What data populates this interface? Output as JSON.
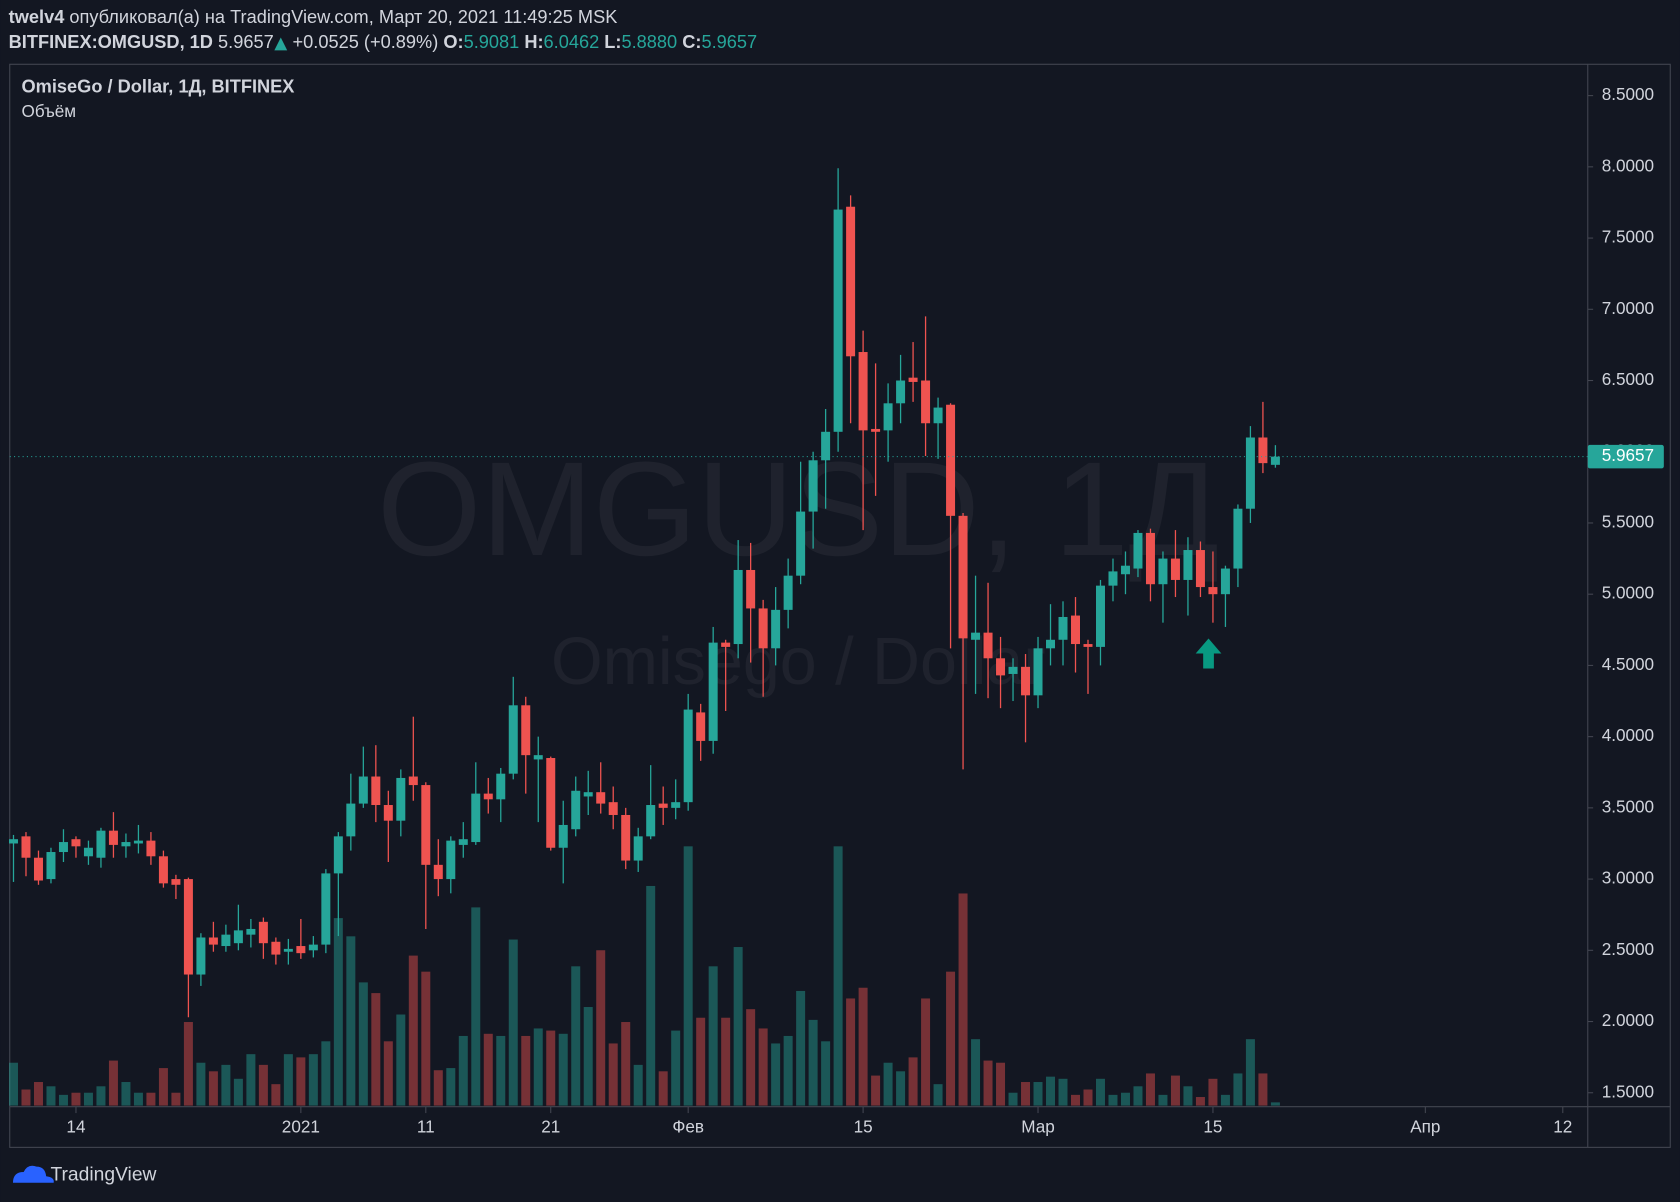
{
  "header": {
    "author": "twelv4",
    "published": "опубликовал(а) на TradingView.com, Март 20, 2021 11:49:25 MSK",
    "symbol": "BITFINEX:OMGUSD, 1D",
    "price": "5.9657",
    "change": "+0.0525 (+0.89%)",
    "open_label": "O:",
    "open": "5.9081",
    "high_label": "H:",
    "high": "6.0462",
    "low_label": "L:",
    "low": "5.8880",
    "close_label": "C:",
    "close": "5.9657"
  },
  "footer": {
    "brand": "TradingView"
  },
  "chart_data": {
    "type": "candlestick",
    "title": "OmiseGo / Dollar, 1Д, BITFINEX",
    "volume_label": "Объём",
    "watermark": "OMGUSD, 1Д",
    "watermark_subtitle": "Omisego / Dollar",
    "up_color": "#26a69a",
    "down_color": "#ef5350",
    "open": [
      3.25,
      3.3,
      3.15,
      3.0,
      3.19,
      3.28,
      3.16,
      3.15,
      3.34,
      3.23,
      3.25,
      3.27,
      3.16,
      3.0,
      3.0,
      2.33,
      2.59,
      2.53,
      2.55,
      2.61,
      2.7,
      2.56,
      2.49,
      2.53,
      2.5,
      2.54,
      3.04,
      3.3,
      3.53,
      3.72,
      3.52,
      3.41,
      3.72,
      3.66,
      3.1,
      3.0,
      3.24,
      3.26,
      3.6,
      3.56,
      3.74,
      4.22,
      3.84,
      3.85,
      3.22,
      3.35,
      3.58,
      3.61,
      3.54,
      3.45,
      3.13,
      3.3,
      3.53,
      3.5,
      3.54,
      4.17,
      3.97,
      4.66,
      4.65,
      5.17,
      4.9,
      4.62,
      4.89,
      5.13,
      5.58,
      5.94,
      6.14,
      7.72,
      6.7,
      6.16,
      6.15,
      6.34,
      6.52,
      6.5,
      6.2,
      6.33,
      5.55,
      4.68,
      4.73,
      4.55,
      4.44,
      4.49,
      4.29,
      4.62,
      4.68,
      4.85,
      4.65,
      4.63,
      5.06,
      5.14,
      5.18,
      5.43,
      5.07,
      5.25,
      5.1,
      5.31,
      5.05,
      5.0,
      5.18,
      5.6,
      6.1,
      5.9081
    ],
    "high": [
      3.31,
      3.33,
      3.2,
      3.22,
      3.35,
      3.3,
      3.27,
      3.36,
      3.47,
      3.32,
      3.38,
      3.33,
      3.2,
      3.03,
      3.01,
      2.62,
      2.7,
      2.68,
      2.82,
      2.72,
      2.73,
      2.59,
      2.58,
      2.72,
      2.6,
      3.07,
      3.33,
      3.74,
      3.93,
      3.94,
      3.62,
      3.77,
      4.14,
      3.68,
      3.28,
      3.3,
      3.4,
      3.82,
      3.71,
      3.78,
      4.42,
      4.28,
      4.0,
      3.86,
      3.55,
      3.72,
      3.76,
      3.82,
      3.65,
      3.5,
      3.36,
      3.8,
      3.65,
      3.7,
      4.3,
      4.23,
      4.77,
      4.68,
      5.38,
      5.36,
      4.96,
      5.05,
      5.25,
      5.93,
      6.0,
      6.3,
      7.99,
      7.8,
      6.85,
      6.62,
      6.48,
      6.68,
      6.77,
      6.95,
      6.38,
      6.34,
      5.57,
      5.13,
      5.08,
      4.7,
      4.55,
      4.58,
      4.7,
      4.93,
      4.95,
      4.98,
      4.68,
      5.1,
      5.25,
      5.3,
      5.45,
      5.46,
      5.3,
      5.45,
      5.4,
      5.37,
      5.3,
      5.2,
      5.63,
      6.18,
      6.35,
      6.0462
    ],
    "low": [
      2.98,
      3.02,
      2.96,
      2.97,
      3.12,
      3.15,
      3.1,
      3.08,
      3.15,
      3.15,
      3.18,
      3.1,
      2.94,
      2.86,
      2.03,
      2.25,
      2.49,
      2.49,
      2.5,
      2.52,
      2.44,
      2.4,
      2.4,
      2.44,
      2.45,
      2.48,
      2.6,
      3.2,
      3.5,
      3.4,
      3.12,
      3.3,
      3.55,
      2.65,
      2.88,
      2.9,
      3.15,
      3.24,
      3.46,
      3.4,
      3.7,
      3.6,
      3.4,
      3.2,
      2.97,
      3.3,
      3.45,
      3.46,
      3.35,
      3.07,
      3.05,
      3.28,
      3.38,
      3.42,
      3.48,
      3.83,
      3.88,
      4.18,
      4.55,
      4.52,
      4.28,
      4.5,
      4.76,
      5.07,
      5.32,
      5.6,
      6.0,
      6.2,
      5.45,
      5.69,
      5.93,
      6.2,
      6.35,
      5.97,
      5.95,
      4.62,
      3.77,
      4.3,
      4.27,
      4.2,
      4.25,
      3.96,
      4.2,
      4.5,
      4.5,
      4.45,
      4.3,
      4.5,
      4.95,
      5.0,
      5.12,
      4.95,
      4.8,
      4.98,
      4.85,
      4.98,
      4.8,
      4.77,
      5.05,
      5.5,
      5.85,
      5.888
    ],
    "close": [
      3.28,
      3.15,
      2.99,
      3.19,
      3.26,
      3.23,
      3.22,
      3.34,
      3.24,
      3.26,
      3.27,
      3.16,
      2.97,
      2.96,
      2.33,
      2.59,
      2.54,
      2.61,
      2.64,
      2.65,
      2.55,
      2.47,
      2.51,
      2.48,
      2.54,
      3.04,
      3.3,
      3.53,
      3.72,
      3.52,
      3.41,
      3.71,
      3.66,
      3.1,
      3.0,
      3.27,
      3.28,
      3.6,
      3.56,
      3.74,
      4.22,
      3.87,
      3.87,
      3.22,
      3.38,
      3.62,
      3.61,
      3.53,
      3.45,
      3.13,
      3.3,
      3.52,
      3.5,
      3.54,
      4.19,
      3.97,
      4.66,
      4.63,
      5.17,
      4.9,
      4.62,
      4.89,
      5.13,
      5.58,
      5.94,
      6.14,
      7.7,
      6.67,
      6.15,
      6.14,
      6.34,
      6.5,
      6.49,
      6.2,
      6.31,
      5.55,
      4.69,
      4.73,
      4.55,
      4.43,
      4.49,
      4.29,
      4.62,
      4.68,
      4.84,
      4.65,
      4.63,
      5.06,
      5.16,
      5.2,
      5.43,
      5.07,
      5.25,
      5.1,
      5.31,
      5.05,
      5.0,
      5.18,
      5.6,
      6.1,
      5.92,
      5.9657
    ],
    "volume": [
      40,
      15,
      22,
      18,
      10,
      12,
      12,
      18,
      42,
      22,
      12,
      12,
      35,
      12,
      78,
      40,
      32,
      38,
      25,
      48,
      38,
      20,
      48,
      45,
      48,
      60,
      175,
      158,
      115,
      105,
      60,
      85,
      140,
      125,
      33,
      35,
      65,
      185,
      67,
      65,
      155,
      65,
      72,
      70,
      67,
      130,
      92,
      145,
      58,
      78,
      38,
      205,
      32,
      70,
      242,
      82,
      130,
      82,
      148,
      90,
      72,
      58,
      65,
      107,
      80,
      60,
      242,
      100,
      110,
      28,
      40,
      32,
      45,
      100,
      20,
      125,
      198,
      62,
      42,
      40,
      12,
      22,
      22,
      27,
      25,
      10,
      15,
      25,
      10,
      12,
      18,
      30,
      10,
      28,
      18,
      8,
      25,
      10,
      30,
      62,
      30,
      3
    ],
    "xlim": [
      -0.3,
      126
    ],
    "xticks": [
      {
        "value": 5,
        "label": "14"
      },
      {
        "value": 23,
        "label": "2021"
      },
      {
        "value": 33,
        "label": "11"
      },
      {
        "value": 43,
        "label": "21"
      },
      {
        "value": 54,
        "label": "Фев"
      },
      {
        "value": 68,
        "label": "15"
      },
      {
        "value": 82,
        "label": "Мар"
      },
      {
        "value": 96,
        "label": "15"
      },
      {
        "value": 113,
        "label": "Апр"
      },
      {
        "value": 124,
        "label": "12"
      }
    ],
    "ylim": [
      1.41,
      8.72
    ],
    "yticks": [
      {
        "value": 1.5,
        "label": "1.5000"
      },
      {
        "value": 2,
        "label": "2.0000"
      },
      {
        "value": 2.5,
        "label": "2.5000"
      },
      {
        "value": 3,
        "label": "3.0000"
      },
      {
        "value": 3.5,
        "label": "3.5000"
      },
      {
        "value": 4,
        "label": "4.0000"
      },
      {
        "value": 4.5,
        "label": "4.5000"
      },
      {
        "value": 5,
        "label": "5.0000"
      },
      {
        "value": 5.5,
        "label": "5.5000"
      },
      {
        "value": 6,
        "label": "6.0000"
      },
      {
        "value": 6.5,
        "label": "6.5000"
      },
      {
        "value": 7,
        "label": "7.0000"
      },
      {
        "value": 7.5,
        "label": "7.5000"
      },
      {
        "value": 8,
        "label": "8.0000"
      },
      {
        "value": 8.5,
        "label": "8.5000"
      }
    ],
    "grid": false
  }
}
